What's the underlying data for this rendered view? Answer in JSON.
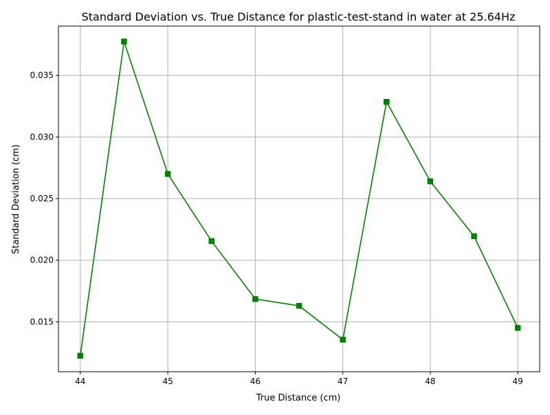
{
  "chart_data": {
    "type": "line",
    "title": "Standard Deviation vs. True Distance for plastic-test-stand in water at 25.64Hz",
    "xlabel": "True Distance (cm)",
    "ylabel": "Standard Deviation (cm)",
    "xlim": [
      43.75,
      49.25
    ],
    "ylim": [
      0.01095,
      0.039
    ],
    "xticks": [
      44,
      45,
      46,
      47,
      48,
      49
    ],
    "xtick_labels": [
      "44",
      "45",
      "46",
      "47",
      "48",
      "49"
    ],
    "yticks": [
      0.015,
      0.02,
      0.025,
      0.03,
      0.035
    ],
    "ytick_labels": [
      "0.015",
      "0.020",
      "0.025",
      "0.030",
      "0.035"
    ],
    "grid": true,
    "series": [
      {
        "color": "#008000",
        "marker": "square",
        "x": [
          44.0,
          44.5,
          45.0,
          45.5,
          46.0,
          46.5,
          47.0,
          47.5,
          48.0,
          48.5,
          49.0
        ],
        "y": [
          0.01225,
          0.03775,
          0.027,
          0.02155,
          0.01685,
          0.0163,
          0.01355,
          0.03285,
          0.0264,
          0.02195,
          0.0145
        ]
      }
    ]
  }
}
